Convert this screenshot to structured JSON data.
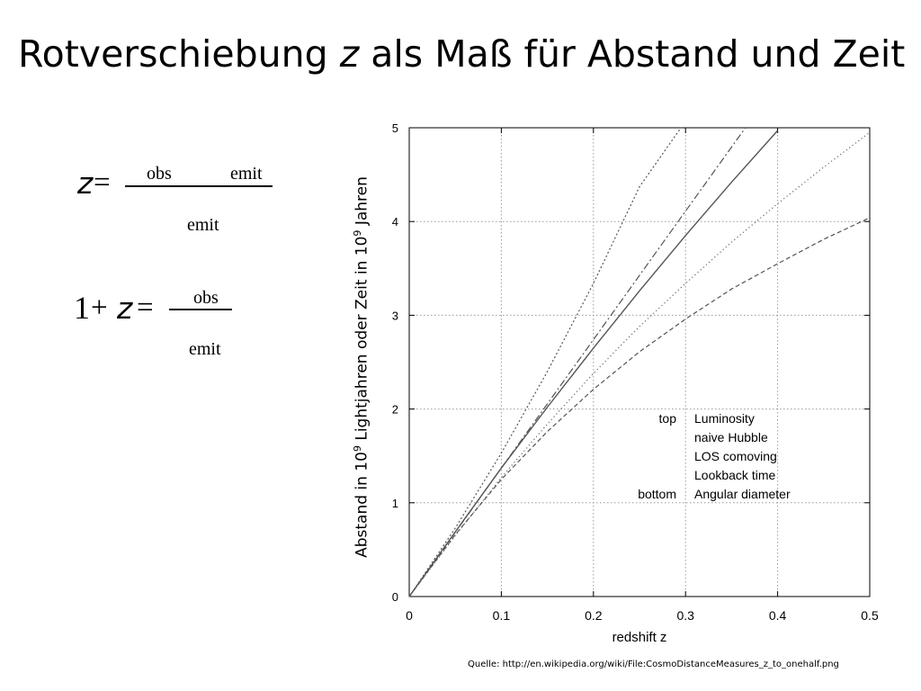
{
  "slide": {
    "title_prefix": "Rotverschiebung ",
    "title_var": "z",
    "title_suffix": " als Maß für Abstand und Zeit",
    "source": "Quelle: http://en.wikipedia.org/wiki/File:CosmoDistanceMeasures_z_to_onehalf.png"
  },
  "formulas": {
    "f1": {
      "var": "z",
      "eq": "=",
      "num_left": "obs",
      "num_right": "emit",
      "den": "emit"
    },
    "f2": {
      "one": "1",
      "plus": "+",
      "var": "z",
      "eq": "=",
      "num": "obs",
      "den": "emit"
    }
  },
  "chart_data": {
    "type": "line",
    "xlabel": "redshift z",
    "ylabel_prefix": "Abstand in 10",
    "ylabel_sup": "9",
    "ylabel_mid": " Lightjahren oder Zeit in 10",
    "ylabel_sup2": "9",
    "ylabel_suffix": " Jahren",
    "xlim": [
      0,
      0.5
    ],
    "ylim": [
      0,
      5
    ],
    "x_ticks": [
      0,
      0.1,
      0.2,
      0.3,
      0.4,
      0.5
    ],
    "x_tick_labels": [
      "0",
      "0.1",
      "0.2",
      "0.3",
      "0.4",
      "0.5"
    ],
    "y_ticks": [
      0,
      1,
      2,
      3,
      4,
      5
    ],
    "y_tick_labels": [
      "0",
      "1",
      "2",
      "3",
      "4",
      "5"
    ],
    "grid": true,
    "legend_position": "bottom-right",
    "legend": {
      "top_label": "top",
      "bottom_label": "bottom",
      "entries": [
        "Luminosity",
        "naive Hubble",
        "LOS comoving",
        "Lookback time",
        "Angular diameter"
      ]
    },
    "series": [
      {
        "name": "Luminosity",
        "style": "dotted-dense",
        "x": [
          0,
          0.05,
          0.1,
          0.15,
          0.2,
          0.25,
          0.295
        ],
        "y": [
          0,
          0.73,
          1.53,
          2.4,
          3.34,
          4.37,
          5.0
        ]
      },
      {
        "name": "naive Hubble",
        "style": "dashdot",
        "x": [
          0,
          0.1,
          0.2,
          0.3,
          0.365
        ],
        "y": [
          0,
          1.37,
          2.74,
          4.11,
          5.0
        ]
      },
      {
        "name": "LOS comoving",
        "style": "solid",
        "x": [
          0,
          0.05,
          0.1,
          0.15,
          0.2,
          0.25,
          0.3,
          0.35,
          0.4
        ],
        "y": [
          0,
          0.69,
          1.37,
          2.02,
          2.65,
          3.26,
          3.85,
          4.42,
          4.97
        ]
      },
      {
        "name": "Lookback time",
        "style": "dotted-sparse",
        "x": [
          0,
          0.05,
          0.1,
          0.15,
          0.2,
          0.25,
          0.3,
          0.35,
          0.4,
          0.45,
          0.5
        ],
        "y": [
          0,
          0.65,
          1.27,
          1.84,
          2.38,
          2.88,
          3.34,
          3.78,
          4.19,
          4.58,
          4.95
        ]
      },
      {
        "name": "Angular diameter",
        "style": "dashed",
        "x": [
          0,
          0.05,
          0.1,
          0.15,
          0.2,
          0.25,
          0.3,
          0.35,
          0.4,
          0.45,
          0.5
        ],
        "y": [
          0,
          0.66,
          1.25,
          1.76,
          2.21,
          2.61,
          2.96,
          3.28,
          3.55,
          3.81,
          4.04
        ]
      }
    ]
  }
}
